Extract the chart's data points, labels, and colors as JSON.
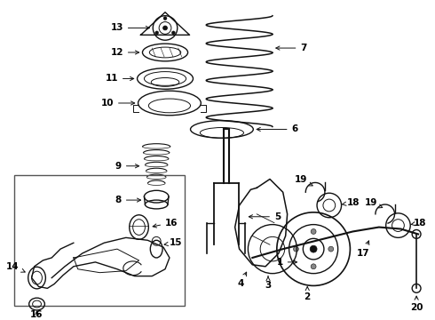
{
  "bg_color": "#ffffff",
  "line_color": "#111111",
  "label_color": "#000000",
  "fig_width": 4.9,
  "fig_height": 3.6,
  "dpi": 100,
  "font_size": 7.5,
  "font_weight": "bold"
}
